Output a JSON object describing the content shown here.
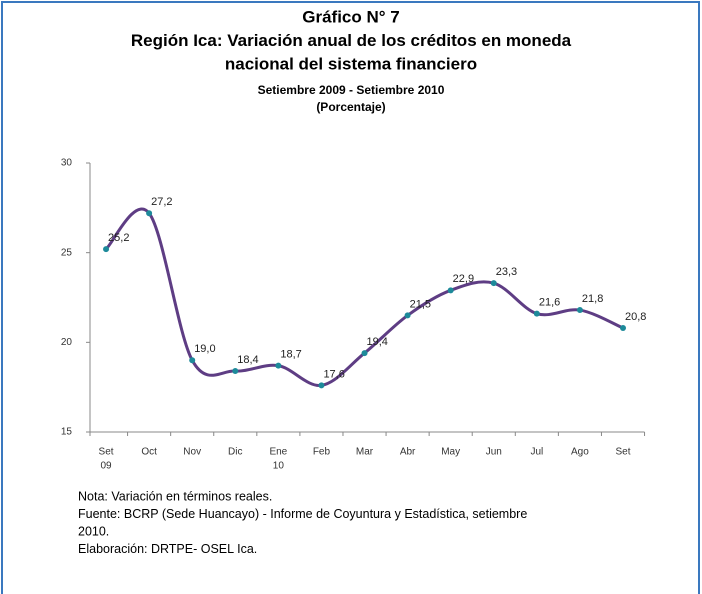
{
  "chart_data": {
    "type": "line",
    "title": [
      "Gráfico N° 7",
      "Región Ica: Variación anual de los créditos en moneda",
      "nacional del sistema financiero"
    ],
    "subtitle": [
      "Setiembre 2009 - Setiembre 2010",
      "(Porcentaje)"
    ],
    "categories": [
      [
        "Set",
        "09"
      ],
      [
        "Oct"
      ],
      [
        "Nov"
      ],
      [
        "Dic"
      ],
      [
        "Ene",
        "10"
      ],
      [
        "Feb"
      ],
      [
        "Mar"
      ],
      [
        "Abr"
      ],
      [
        "May"
      ],
      [
        "Jun"
      ],
      [
        "Jul"
      ],
      [
        "Ago"
      ],
      [
        "Set"
      ]
    ],
    "values": [
      25.2,
      27.2,
      19.0,
      18.4,
      18.7,
      17.6,
      19.4,
      21.5,
      22.9,
      23.3,
      21.6,
      21.8,
      20.8
    ],
    "value_labels": [
      "25,2",
      "27,2",
      "19,0",
      "18,4",
      "18,7",
      "17,6",
      "19,4",
      "21,5",
      "22,9",
      "23,3",
      "21,6",
      "21,8",
      "20,8"
    ],
    "color": "#5e3d84",
    "marker_color": "#1d8a9a",
    "ylim": [
      15,
      30
    ],
    "yticks": [
      15,
      20,
      25,
      30
    ],
    "notes": [
      "Nota: Variación en términos reales.",
      "Fuente: BCRP (Sede Huancayo) -  Informe de Coyuntura y Estadística, setiembre",
      "2010.",
      "Elaboración: DRTPE- OSEL Ica."
    ]
  }
}
